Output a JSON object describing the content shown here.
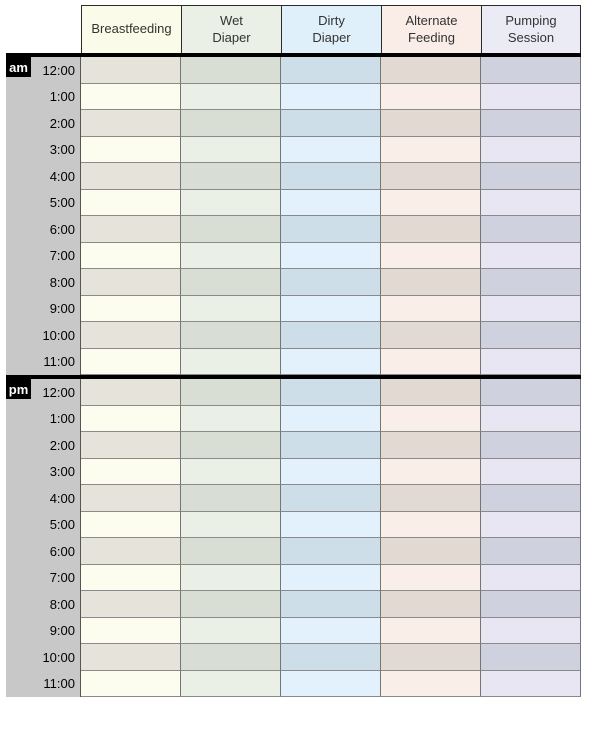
{
  "table": {
    "columns": [
      {
        "id": "breastfeeding",
        "label": "Breastfeeding",
        "header_bg": "#fbfbe9",
        "row_light_bg": "#fdfdef",
        "row_dark_bg": "#e6e4da"
      },
      {
        "id": "wet-diaper",
        "label": "Wet\nDiaper",
        "header_bg": "#eaf0e5",
        "row_light_bg": "#ebf0e6",
        "row_dark_bg": "#d8ded3"
      },
      {
        "id": "dirty-diaper",
        "label": "Dirty\nDiaper",
        "header_bg": "#e0f0fb",
        "row_light_bg": "#e2f1fc",
        "row_dark_bg": "#cddee9"
      },
      {
        "id": "alternate-feeding",
        "label": "Alternate\nFeeding",
        "header_bg": "#faece7",
        "row_light_bg": "#faeee9",
        "row_dark_bg": "#e2d9d3"
      },
      {
        "id": "pumping-session",
        "label": "Pumping\nSession",
        "header_bg": "#ebebf5",
        "row_light_bg": "#e7e6f2",
        "row_dark_bg": "#cfd1de"
      }
    ],
    "sections": [
      {
        "label": "am",
        "times": [
          "12:00",
          "1:00",
          "2:00",
          "3:00",
          "4:00",
          "5:00",
          "6:00",
          "7:00",
          "8:00",
          "9:00",
          "10:00",
          "11:00"
        ]
      },
      {
        "label": "pm",
        "times": [
          "12:00",
          "1:00",
          "2:00",
          "3:00",
          "4:00",
          "5:00",
          "6:00",
          "7:00",
          "8:00",
          "9:00",
          "10:00",
          "11:00"
        ]
      }
    ],
    "colors": {
      "time_column_bg": "#c8c8c8",
      "section_badge_bg": "#000000",
      "section_badge_text": "#ffffff",
      "divider": "#000000",
      "header_border": "#2b2b2b",
      "grid_vertical_border": "#757575",
      "grid_horizontal_border": "#8a8a8a",
      "header_text": "#333333",
      "time_text": "#000000"
    }
  }
}
